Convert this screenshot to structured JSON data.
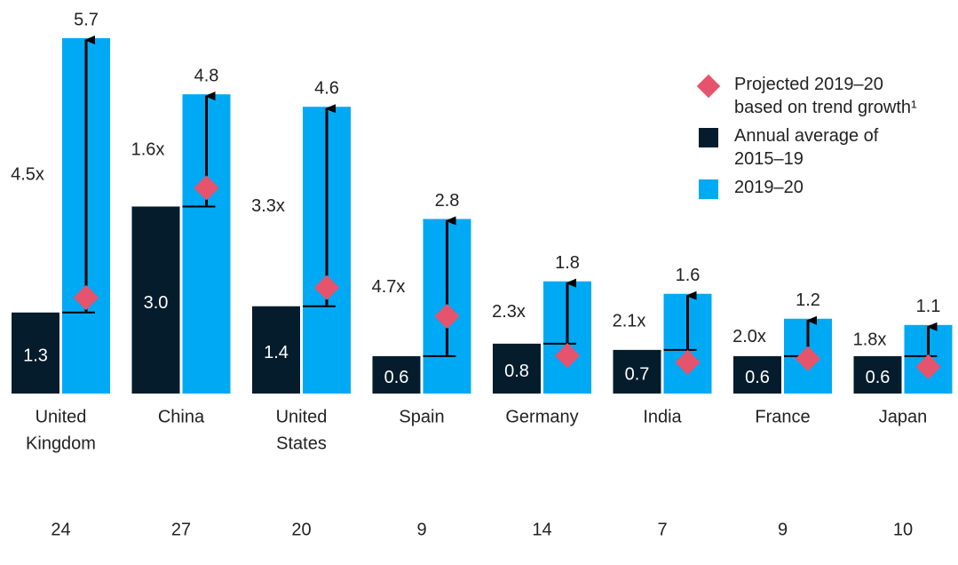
{
  "chart_data": {
    "type": "bar",
    "categories": [
      [
        "United",
        "Kingdom"
      ],
      [
        "China"
      ],
      [
        "United",
        "States"
      ],
      [
        "Spain"
      ],
      [
        "Germany"
      ],
      [
        "India"
      ],
      [
        "France"
      ],
      [
        "Japan"
      ]
    ],
    "ylim": [
      0,
      5.7
    ],
    "series": [
      {
        "name": "Annual average of 2015–19",
        "color": "#051c2c",
        "values": [
          1.3,
          3.0,
          1.4,
          0.6,
          0.8,
          0.7,
          0.6,
          0.6
        ],
        "value_labels": [
          "1.3",
          "3.0",
          "1.4",
          "0.6",
          "0.8",
          "0.7",
          "0.6",
          "0.6"
        ]
      },
      {
        "name": "2019–20",
        "color": "#00a9f4",
        "values": [
          5.7,
          4.8,
          4.6,
          2.8,
          1.8,
          1.6,
          1.2,
          1.1
        ],
        "value_labels": [
          "5.7",
          "4.8",
          "4.6",
          "2.8",
          "1.8",
          "1.6",
          "1.2",
          "1.1"
        ]
      },
      {
        "name": "Projected 2019–20 based on trend growth¹",
        "color": "#e5546c",
        "values": [
          1.54,
          3.3,
          1.7,
          1.24,
          0.61,
          0.5,
          0.56,
          0.43
        ]
      }
    ],
    "annotations": [
      "4.5x",
      "1.6x",
      "3.3x",
      "4.7x",
      "2.3x",
      "2.1x",
      "2.0x",
      "1.8x"
    ],
    "bottom_values": [
      24,
      27,
      20,
      9,
      14,
      7,
      9,
      10
    ]
  }
}
